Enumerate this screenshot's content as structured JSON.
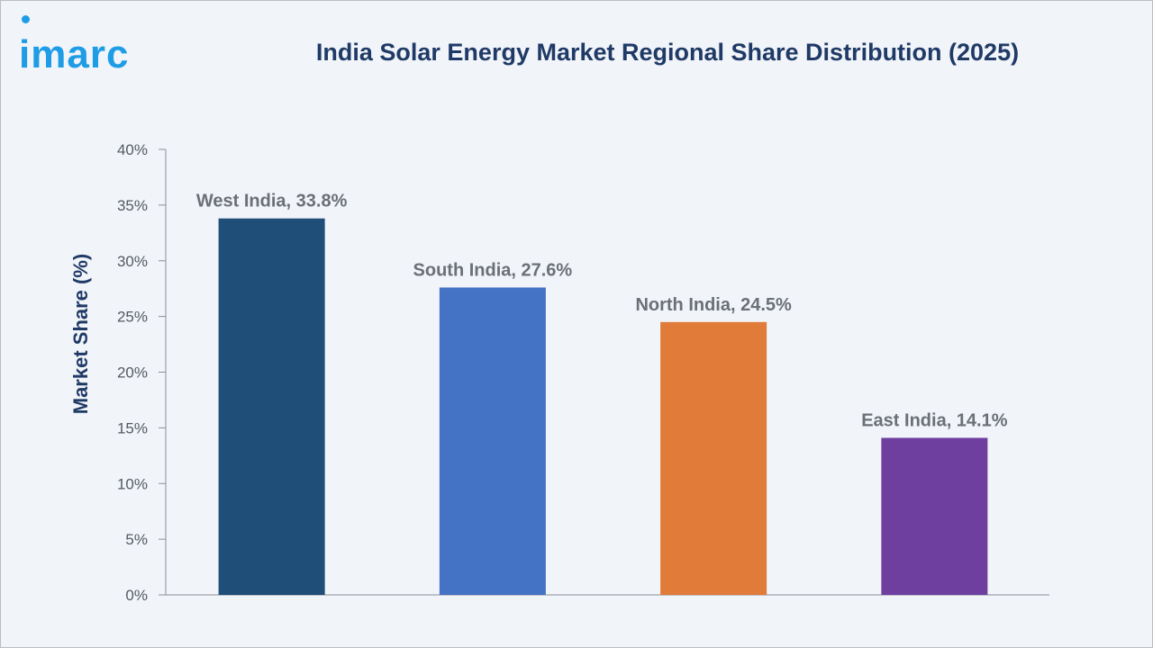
{
  "brand": {
    "logo_text": "imarc",
    "color": "#1e9de6"
  },
  "chart_data": {
    "type": "bar",
    "title": "India Solar Energy Market Regional Share Distribution (2025)",
    "xlabel": "",
    "ylabel": "Market Share (%)",
    "categories": [
      "West India",
      "South India",
      "North India",
      "East India"
    ],
    "values": [
      33.8,
      27.6,
      24.5,
      14.1
    ],
    "data_labels": [
      "West India, 33.8%",
      "South India, 27.6%",
      "North India, 24.5%",
      "East India, 14.1%"
    ],
    "colors": [
      "#1f4e79",
      "#4472c4",
      "#e07b39",
      "#6f3fa0"
    ],
    "ylim": [
      0,
      40
    ],
    "yticks": [
      0,
      5,
      10,
      15,
      20,
      25,
      30,
      35,
      40
    ],
    "ytick_labels": [
      "0%",
      "5%",
      "10%",
      "15%",
      "20%",
      "25%",
      "30%",
      "35%",
      "40%"
    ],
    "grid": false,
    "legend": "none"
  }
}
